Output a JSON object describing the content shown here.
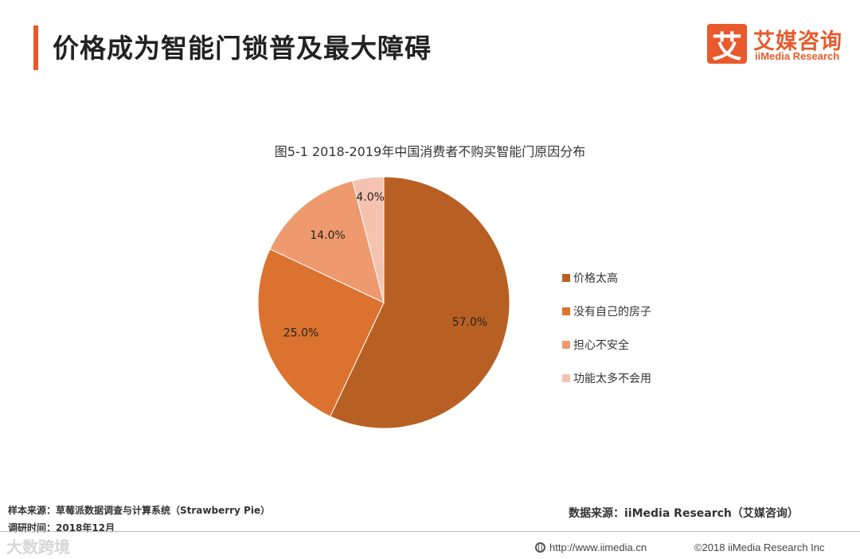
{
  "header": {
    "title": "价格成为智能门锁普及最大障碍",
    "logo_mark": "艾",
    "logo_cn": "艾媒咨询",
    "logo_en": "iiMedia Research"
  },
  "chart_data": {
    "type": "pie",
    "title": "图5-1 2018-2019年中国消费者不购买智能门原因分布",
    "categories": [
      "价格太高",
      "没有自己的房子",
      "担心不安全",
      "功能太多不会用"
    ],
    "values": [
      57.0,
      25.0,
      14.0,
      4.0
    ],
    "labels": [
      "57.0%",
      "25.0%",
      "14.0%",
      "4.0%"
    ],
    "colors": [
      "#b86023",
      "#dc722f",
      "#ef9a6e",
      "#f6c2b0"
    ],
    "legend_position": "right"
  },
  "footer": {
    "sample_source": "样本来源：草莓派数据调查与计算系统（Strawberry Pie）",
    "survey_time": "调研时间：2018年12月",
    "data_source": "数据来源：iiMedia Research（艾媒咨询）",
    "watermark": "大数跨境",
    "site": "http://www.iimedia.cn",
    "copyright": "©2018  iiMedia Research  Inc"
  },
  "icons": {
    "globe": "globe-icon",
    "logo": "iimedia-logo-icon"
  }
}
